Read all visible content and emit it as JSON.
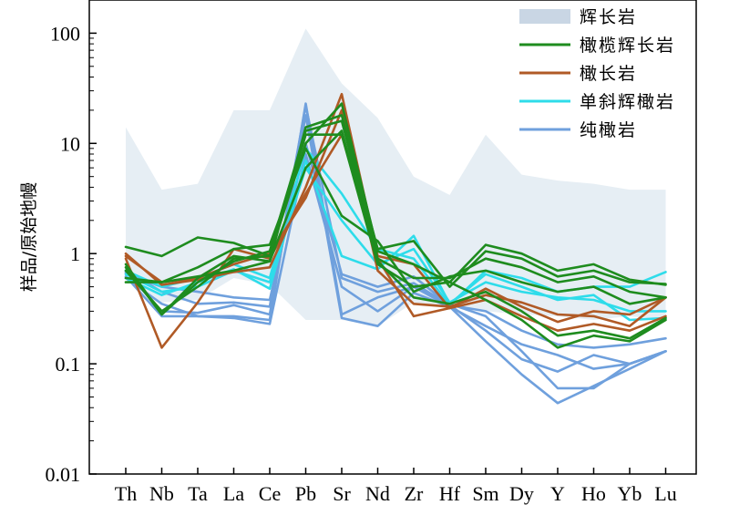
{
  "chart_data": {
    "type": "line",
    "ylabel": "样品/原始地幔",
    "yscale": "log",
    "ylim": [
      0.01,
      200
    ],
    "yticks": [
      {
        "value": 0.01,
        "label": "0.01"
      },
      {
        "value": 0.1,
        "label": "0.1"
      },
      {
        "value": 1,
        "label": "1"
      },
      {
        "value": 10,
        "label": "10"
      },
      {
        "value": 100,
        "label": "100"
      }
    ],
    "categories": [
      "Th",
      "Nb",
      "Ta",
      "La",
      "Ce",
      "Pb",
      "Sr",
      "Nd",
      "Zr",
      "Hf",
      "Sm",
      "Dy",
      "Y",
      "Ho",
      "Yb",
      "Lu"
    ],
    "legend": {
      "position": "top-right",
      "entries": [
        {
          "label": "辉长岩",
          "color": "#c9d6e4",
          "kind": "area"
        },
        {
          "label": "橄榄辉长岩",
          "color": "#1e8c1e",
          "kind": "line"
        },
        {
          "label": "橄长岩",
          "color": "#b05a26",
          "kind": "line"
        },
        {
          "label": "单斜辉橄岩",
          "color": "#2edcea",
          "kind": "line"
        },
        {
          "label": "纯橄岩",
          "color": "#6fa0dd",
          "kind": "line"
        }
      ]
    },
    "area": {
      "name": "辉长岩",
      "color": "#e6eef4",
      "upper": [
        14,
        3.8,
        4.3,
        20,
        20,
        110,
        35,
        17,
        5,
        3.4,
        12,
        5.2,
        4.6,
        4.3,
        3.8,
        3.8
      ],
      "lower": [
        0.62,
        0.36,
        0.38,
        0.6,
        0.52,
        0.25,
        0.25,
        0.22,
        0.36,
        0.33,
        0.3,
        0.28,
        0.27,
        0.25,
        0.27,
        0.25
      ]
    },
    "series": [
      {
        "name": "纯橄岩",
        "color": "#6fa0dd",
        "values": [
          0.62,
          0.27,
          0.27,
          0.27,
          0.25,
          23,
          0.28,
          0.4,
          0.5,
          0.35,
          0.27,
          0.13,
          0.06,
          0.06,
          0.1,
          0.13
        ]
      },
      {
        "name": "纯橄岩",
        "color": "#6fa0dd",
        "values": [
          0.68,
          0.3,
          0.29,
          0.34,
          0.28,
          18,
          0.26,
          0.22,
          0.44,
          0.33,
          0.16,
          0.08,
          0.044,
          0.063,
          0.09,
          0.13
        ]
      },
      {
        "name": "纯橄岩",
        "color": "#6fa0dd",
        "values": [
          0.7,
          0.45,
          0.35,
          0.36,
          0.33,
          22,
          0.6,
          0.45,
          0.54,
          0.34,
          0.2,
          0.11,
          0.085,
          0.12,
          0.1,
          0.13
        ]
      },
      {
        "name": "纯橄岩",
        "color": "#6fa0dd",
        "values": [
          0.6,
          0.35,
          0.27,
          0.26,
          0.23,
          8,
          0.5,
          0.3,
          0.5,
          0.33,
          0.22,
          0.15,
          0.12,
          0.09,
          0.1,
          0.13
        ]
      },
      {
        "name": "纯橄岩",
        "color": "#6fa0dd",
        "values": [
          0.66,
          0.5,
          0.45,
          0.4,
          0.38,
          10,
          0.65,
          0.5,
          0.62,
          0.34,
          0.3,
          0.2,
          0.15,
          0.14,
          0.15,
          0.17
        ]
      },
      {
        "name": "单斜辉橄岩",
        "color": "#2edcea",
        "values": [
          0.6,
          0.42,
          0.55,
          0.72,
          0.48,
          7,
          0.95,
          0.72,
          1.45,
          0.35,
          0.65,
          0.5,
          0.38,
          0.42,
          0.25,
          0.26
        ]
      },
      {
        "name": "单斜辉橄岩",
        "color": "#2edcea",
        "values": [
          0.7,
          0.5,
          0.6,
          0.8,
          0.6,
          9,
          3.5,
          1.1,
          0.9,
          0.34,
          0.7,
          0.6,
          0.45,
          0.5,
          0.5,
          0.68
        ]
      },
      {
        "name": "单斜辉橄岩",
        "color": "#2edcea",
        "values": [
          0.65,
          0.45,
          0.5,
          0.7,
          0.55,
          6,
          2,
          0.8,
          1.1,
          0.36,
          0.55,
          0.45,
          0.4,
          0.38,
          0.3,
          0.3
        ]
      },
      {
        "name": "橄长岩",
        "color": "#b05a26",
        "values": [
          1.0,
          0.52,
          0.58,
          0.68,
          0.75,
          4,
          28,
          0.95,
          0.8,
          0.32,
          0.48,
          0.33,
          0.24,
          0.3,
          0.28,
          0.4
        ]
      },
      {
        "name": "橄长岩",
        "color": "#b05a26",
        "values": [
          0.9,
          0.14,
          0.36,
          1.1,
          0.9,
          3.5,
          12,
          0.9,
          0.27,
          0.32,
          0.38,
          0.27,
          0.2,
          0.23,
          0.2,
          0.27
        ]
      },
      {
        "name": "橄长岩",
        "color": "#b05a26",
        "values": [
          0.95,
          0.55,
          0.6,
          0.8,
          1.0,
          3.2,
          20,
          0.7,
          0.35,
          0.33,
          0.42,
          0.36,
          0.28,
          0.27,
          0.22,
          0.4
        ]
      },
      {
        "name": "橄榄辉长岩",
        "color": "#1e8c1e",
        "values": [
          1.15,
          0.95,
          1.4,
          1.25,
          0.95,
          10,
          23,
          1.05,
          0.8,
          0.55,
          1.2,
          1.0,
          0.7,
          0.8,
          0.58,
          0.52
        ]
      },
      {
        "name": "橄榄辉长岩",
        "color": "#1e8c1e",
        "values": [
          0.75,
          0.28,
          0.6,
          0.95,
          0.85,
          14,
          18,
          1.1,
          1.3,
          0.5,
          1.05,
          0.9,
          0.62,
          0.7,
          0.55,
          0.53
        ]
      },
      {
        "name": "橄榄辉长岩",
        "color": "#1e8c1e",
        "values": [
          0.8,
          0.28,
          0.55,
          0.85,
          1.05,
          13,
          16,
          0.9,
          0.6,
          0.6,
          0.9,
          0.75,
          0.55,
          0.62,
          0.45,
          0.4
        ]
      },
      {
        "name": "橄榄辉长岩",
        "color": "#1e8c1e",
        "values": [
          0.55,
          0.55,
          0.75,
          1.1,
          1.2,
          9,
          2.2,
          1.3,
          0.45,
          0.62,
          0.7,
          0.55,
          0.45,
          0.5,
          0.35,
          0.4
        ]
      },
      {
        "name": "橄榄辉长岩",
        "color": "#1e8c1e",
        "values": [
          0.6,
          0.55,
          0.62,
          0.7,
          0.85,
          6,
          13,
          0.85,
          0.4,
          0.35,
          0.45,
          0.3,
          0.18,
          0.2,
          0.17,
          0.26
        ]
      },
      {
        "name": "橄榄辉长岩",
        "color": "#1e8c1e",
        "values": [
          0.7,
          0.3,
          0.5,
          0.9,
          0.95,
          12,
          12,
          0.8,
          0.5,
          0.55,
          0.38,
          0.25,
          0.14,
          0.18,
          0.16,
          0.25
        ]
      }
    ]
  }
}
